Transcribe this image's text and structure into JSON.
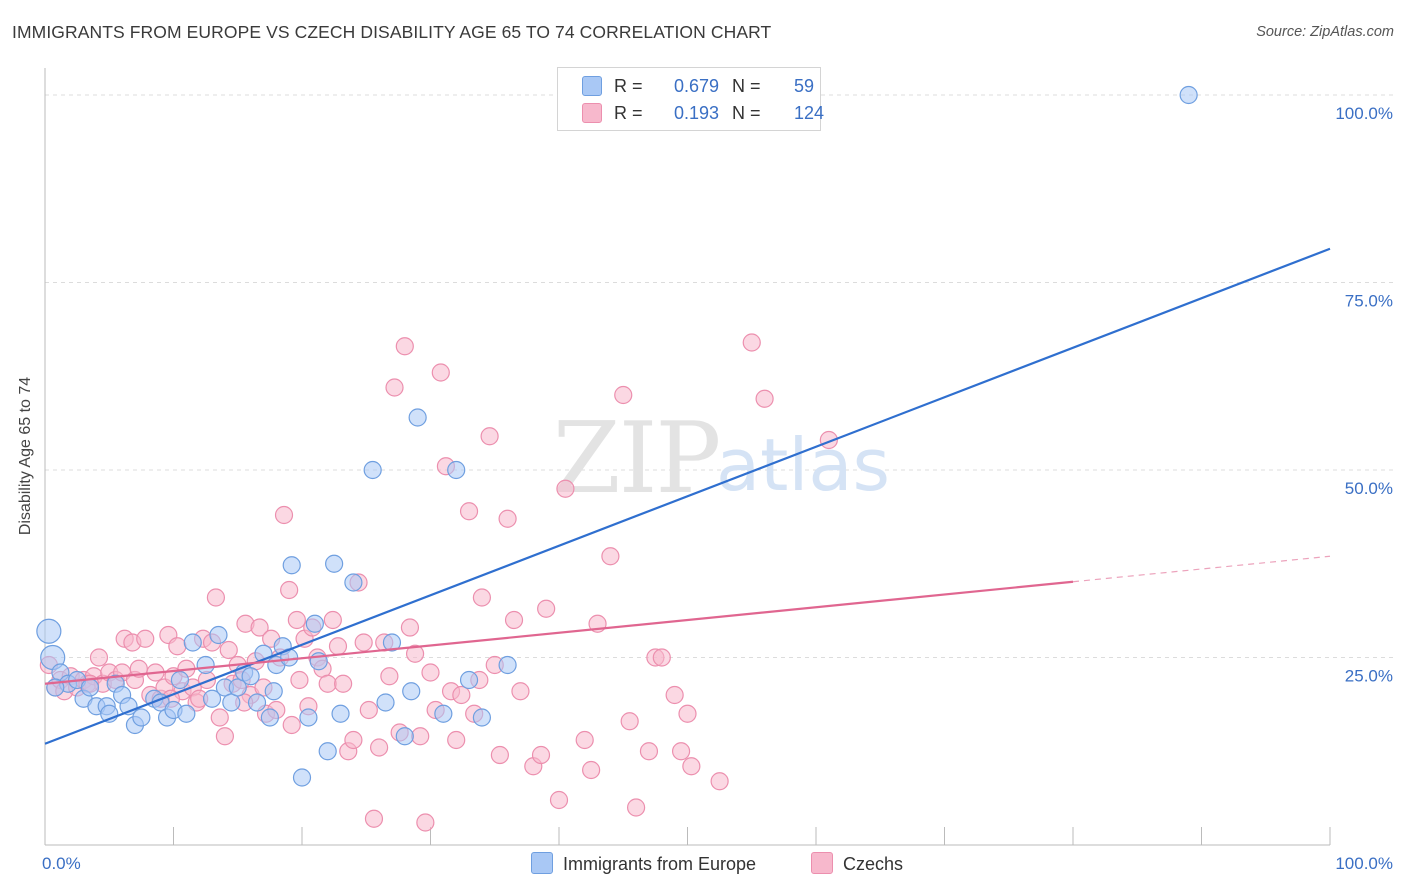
{
  "header": {
    "title": "IMMIGRANTS FROM EUROPE VS CZECH DISABILITY AGE 65 TO 74 CORRELATION CHART",
    "source": "Source: ZipAtlas.com"
  },
  "watermark": {
    "zip": "ZIP",
    "atlas": "atlas"
  },
  "legend": {
    "rows": [
      {
        "r_label": "R =",
        "r_value": "0.679",
        "n_label": "N =",
        "n_value": "59",
        "color": "#a9c8f5"
      },
      {
        "r_label": "R =",
        "r_value": "0.193",
        "n_label": "N =",
        "n_value": "124",
        "color": "#f7b8cc"
      }
    ]
  },
  "bottom_legend": {
    "europe": "Immigrants from Europe",
    "czechs": "Czechs"
  },
  "colors": {
    "europe_fill": "#a9c8f5",
    "europe_stroke": "#6f9fe0",
    "europe_line": "#2f6fcf",
    "czech_fill": "#f7b8cc",
    "czech_stroke": "#ec8fae",
    "czech_line": "#e06690",
    "tick_label": "#3a6fc4"
  },
  "chart_data": {
    "type": "scatter",
    "title": "IMMIGRANTS FROM EUROPE VS CZECH DISABILITY AGE 65 TO 74 CORRELATION CHART",
    "xlabel": "",
    "ylabel": "Disability Age 65 to 74",
    "xlim": [
      0,
      100
    ],
    "ylim": [
      0,
      102
    ],
    "x_tick_labels": [
      "0.0%",
      "100.0%"
    ],
    "y_ticks": [
      25,
      50,
      75,
      100
    ],
    "y_tick_labels": [
      "25.0%",
      "50.0%",
      "75.0%",
      "100.0%"
    ],
    "grid": true,
    "series": [
      {
        "name": "Immigrants from Europe",
        "r": 0.679,
        "n": 59,
        "trend": {
          "x": [
            0,
            100
          ],
          "y": [
            13.5,
            79.5
          ],
          "dashed_from": null
        },
        "points": [
          [
            0.3,
            28.5
          ],
          [
            0.6,
            25
          ],
          [
            1.2,
            23
          ],
          [
            1.8,
            21.5
          ],
          [
            2.5,
            22
          ],
          [
            3,
            19.5
          ],
          [
            3.5,
            21
          ],
          [
            4,
            18.5
          ],
          [
            4.8,
            18.5
          ],
          [
            5,
            17.5
          ],
          [
            5.5,
            21.5
          ],
          [
            6,
            20
          ],
          [
            6.5,
            18.5
          ],
          [
            7,
            16
          ],
          [
            7.5,
            17
          ],
          [
            8.5,
            19.5
          ],
          [
            9,
            19
          ],
          [
            9.5,
            17
          ],
          [
            10,
            18
          ],
          [
            10.5,
            22
          ],
          [
            11,
            17.5
          ],
          [
            11.5,
            27
          ],
          [
            12.5,
            24
          ],
          [
            13,
            19.5
          ],
          [
            13.5,
            28
          ],
          [
            14,
            21
          ],
          [
            14.5,
            19
          ],
          [
            15,
            21
          ],
          [
            15.5,
            23
          ],
          [
            16,
            22.5
          ],
          [
            16.5,
            19
          ],
          [
            17,
            25.5
          ],
          [
            17.5,
            17
          ],
          [
            17.8,
            20.5
          ],
          [
            18,
            24
          ],
          [
            18.5,
            26.5
          ],
          [
            19,
            25
          ],
          [
            19.2,
            37.3
          ],
          [
            20,
            9
          ],
          [
            20.5,
            17
          ],
          [
            21,
            29.5
          ],
          [
            21.3,
            24.5
          ],
          [
            22,
            12.5
          ],
          [
            22.5,
            37.5
          ],
          [
            23,
            17.5
          ],
          [
            24,
            35
          ],
          [
            25.5,
            50
          ],
          [
            26.5,
            19
          ],
          [
            27,
            27
          ],
          [
            28,
            14.5
          ],
          [
            28.5,
            20.5
          ],
          [
            29,
            57
          ],
          [
            31,
            17.5
          ],
          [
            32,
            50
          ],
          [
            33,
            22
          ],
          [
            34,
            17
          ],
          [
            36,
            24
          ],
          [
            89,
            100
          ],
          [
            0.8,
            21
          ]
        ]
      },
      {
        "name": "Czechs",
        "r": 0.193,
        "n": 124,
        "trend": {
          "x": [
            0,
            100
          ],
          "y": [
            21.5,
            38.5
          ],
          "dashed_from": 80
        },
        "points": [
          [
            0.3,
            24
          ],
          [
            0.8,
            21
          ],
          [
            1.2,
            22
          ],
          [
            1.5,
            20.5
          ],
          [
            2,
            22.5
          ],
          [
            2.5,
            21
          ],
          [
            3,
            22
          ],
          [
            3.3,
            21.5
          ],
          [
            3.8,
            22.5
          ],
          [
            4.2,
            25
          ],
          [
            4.5,
            21.5
          ],
          [
            5,
            23
          ],
          [
            5.5,
            22
          ],
          [
            6,
            23
          ],
          [
            6.2,
            27.5
          ],
          [
            6.8,
            27
          ],
          [
            7,
            22
          ],
          [
            7.3,
            23.5
          ],
          [
            7.8,
            27.5
          ],
          [
            8.2,
            20
          ],
          [
            8.6,
            23
          ],
          [
            9,
            19.5
          ],
          [
            9.3,
            21
          ],
          [
            9.6,
            28
          ],
          [
            10,
            22.5
          ],
          [
            10.3,
            26.5
          ],
          [
            10.7,
            20.5
          ],
          [
            11,
            23.5
          ],
          [
            11.5,
            21
          ],
          [
            11.8,
            19
          ],
          [
            12,
            19.5
          ],
          [
            12.3,
            27.5
          ],
          [
            12.6,
            22
          ],
          [
            13,
            27
          ],
          [
            13.3,
            33
          ],
          [
            13.6,
            17
          ],
          [
            14,
            14.5
          ],
          [
            14.3,
            26
          ],
          [
            14.6,
            21.5
          ],
          [
            15,
            24
          ],
          [
            15.3,
            22
          ],
          [
            15.6,
            29.5
          ],
          [
            16,
            20
          ],
          [
            16.4,
            24.5
          ],
          [
            16.7,
            29
          ],
          [
            17,
            21
          ],
          [
            17.2,
            17.5
          ],
          [
            17.6,
            27.5
          ],
          [
            18,
            18
          ],
          [
            18.3,
            25
          ],
          [
            18.6,
            44
          ],
          [
            19,
            34
          ],
          [
            19.2,
            16
          ],
          [
            19.6,
            30
          ],
          [
            19.8,
            22
          ],
          [
            20.2,
            27.5
          ],
          [
            20.5,
            18.5
          ],
          [
            20.8,
            29
          ],
          [
            21.2,
            25
          ],
          [
            21.6,
            23.5
          ],
          [
            22,
            21.5
          ],
          [
            22.4,
            30
          ],
          [
            22.8,
            26.5
          ],
          [
            23.2,
            21.5
          ],
          [
            23.6,
            12.5
          ],
          [
            24,
            14
          ],
          [
            24.4,
            35
          ],
          [
            24.8,
            27
          ],
          [
            25.2,
            18
          ],
          [
            25.6,
            3.5
          ],
          [
            26,
            13
          ],
          [
            26.4,
            27
          ],
          [
            26.8,
            22.5
          ],
          [
            27.2,
            61
          ],
          [
            27.6,
            15
          ],
          [
            28,
            66.5
          ],
          [
            28.4,
            29
          ],
          [
            28.8,
            25.5
          ],
          [
            29.2,
            14.5
          ],
          [
            29.6,
            3
          ],
          [
            30,
            23
          ],
          [
            30.4,
            18
          ],
          [
            30.8,
            63
          ],
          [
            31.2,
            50.5
          ],
          [
            31.6,
            20.5
          ],
          [
            32,
            14
          ],
          [
            32.4,
            20
          ],
          [
            33,
            44.5
          ],
          [
            33.4,
            17.5
          ],
          [
            34,
            33
          ],
          [
            34.6,
            54.5
          ],
          [
            35,
            24
          ],
          [
            35.4,
            12
          ],
          [
            36,
            43.5
          ],
          [
            36.5,
            30
          ],
          [
            37,
            20.5
          ],
          [
            38,
            10.5
          ],
          [
            38.6,
            12
          ],
          [
            39,
            31.5
          ],
          [
            40,
            6
          ],
          [
            40.5,
            47.5
          ],
          [
            42,
            14
          ],
          [
            42.5,
            10
          ],
          [
            43,
            29.5
          ],
          [
            44,
            38.5
          ],
          [
            45,
            60
          ],
          [
            45.5,
            16.5
          ],
          [
            46,
            5
          ],
          [
            47,
            12.5
          ],
          [
            47.5,
            25
          ],
          [
            48,
            25
          ],
          [
            49,
            20
          ],
          [
            49.5,
            12.5
          ],
          [
            50,
            17.5
          ],
          [
            50.3,
            10.5
          ],
          [
            52.5,
            8.5
          ],
          [
            55,
            67
          ],
          [
            56,
            59.5
          ],
          [
            61,
            54
          ],
          [
            33.8,
            22
          ],
          [
            15.5,
            19
          ],
          [
            9.8,
            19.5
          ],
          [
            3.5,
            21.5
          ]
        ]
      }
    ]
  }
}
